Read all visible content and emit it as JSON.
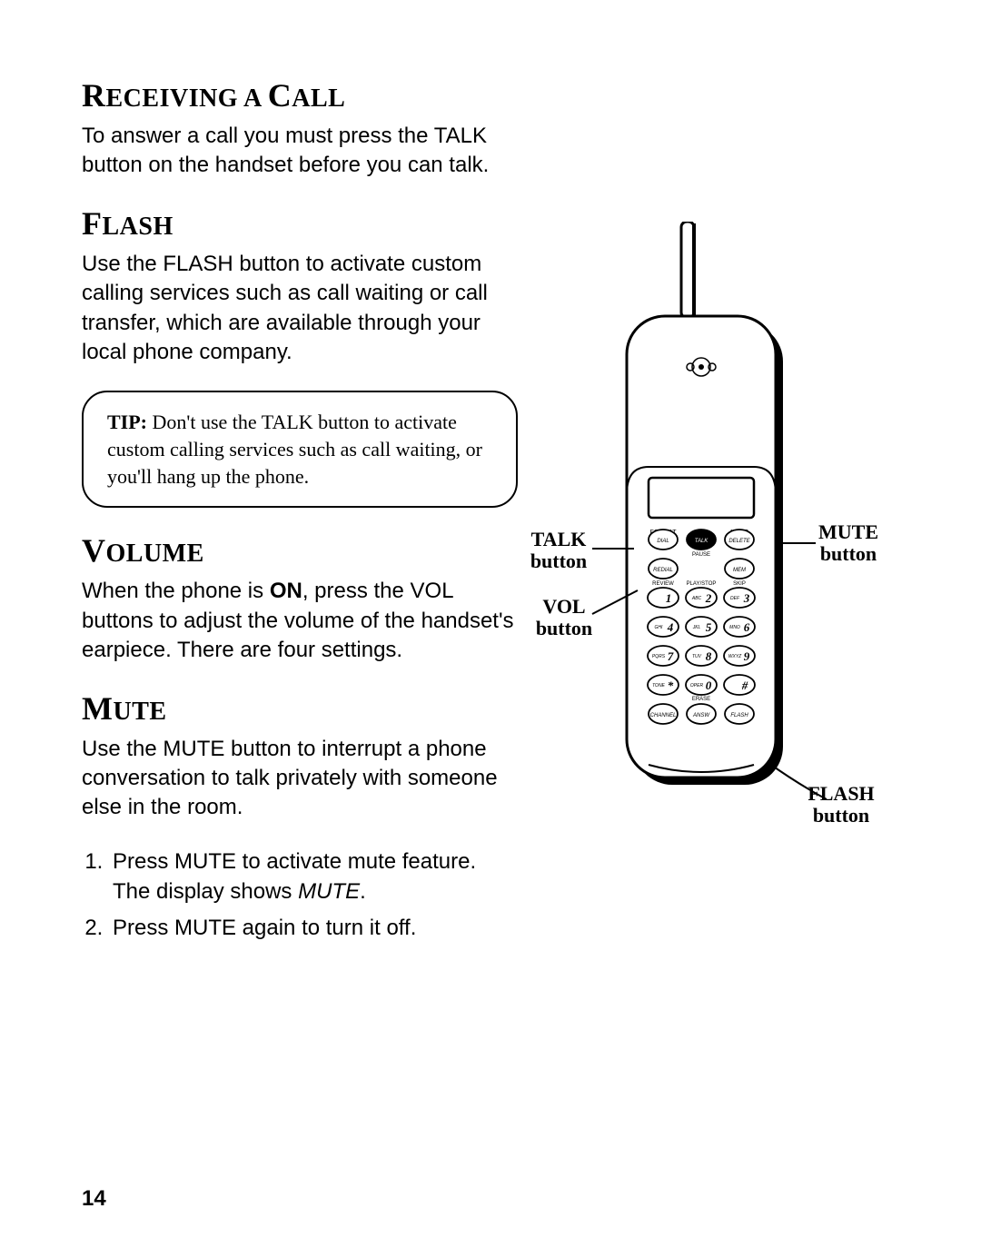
{
  "sections": {
    "receiving": {
      "heading_cap1": "R",
      "heading_rest1": "ECEIVING",
      "heading_cap2": "C",
      "heading_rest2": "ALL",
      "heading_mid": " A ",
      "body": "To answer a call you must press the TALK button on the handset before you can talk."
    },
    "flash": {
      "heading_cap": "F",
      "heading_rest": "LASH",
      "body": "Use the FLASH button to activate custom calling services such as call waiting or call transfer, which are available through your local phone company."
    },
    "tip": {
      "label": "TIP:",
      "text": " Don't use the TALK button to activate custom calling services such as call waiting, or you'll hang up the phone."
    },
    "volume": {
      "heading_cap": "V",
      "heading_rest": "OLUME",
      "body_pre": "When the phone is ",
      "body_bold": "ON",
      "body_post": ", press the VOL buttons to adjust the volume of the handset's earpiece. There are four settings."
    },
    "mute": {
      "heading_cap": "M",
      "heading_rest": "UTE",
      "body": "Use the MUTE button to interrupt a phone conversation to talk privately with someone else in the room.",
      "step1_pre": "Press MUTE to activate mute feature. The display shows ",
      "step1_italic": "MUTE",
      "step1_post": ".",
      "step2": "Press MUTE again to turn it off."
    }
  },
  "labels": {
    "talk": "TALK button",
    "vol": "VOL button",
    "mute": "MUTE button",
    "flash": "FLASH button"
  },
  "page_number": "14",
  "phone": {
    "keypad_rows": [
      [
        "DIAL",
        "TALK",
        "DELETE"
      ],
      [
        "REDIAL",
        "",
        "MEM"
      ],
      [
        "1",
        "ABC 2",
        "DEF 3"
      ],
      [
        "GHI 4",
        "JKL 5",
        "MNO 6"
      ],
      [
        "PQRS 7",
        "TUV 8",
        "WXYZ 9"
      ],
      [
        "TONE *",
        "OPER 0",
        "#"
      ],
      [
        "CHANNEL",
        "ANSW",
        "FLASH"
      ]
    ],
    "top_labels_left": "FORMAT",
    "top_labels_right": "MUTE",
    "mid_label": "PAUSE",
    "sub_left": "REVIEW",
    "sub_mid": "PLAY/STOP",
    "sub_right": "SKIP",
    "erase": "ERASE"
  },
  "colors": {
    "ink": "#000000",
    "paper": "#ffffff"
  }
}
